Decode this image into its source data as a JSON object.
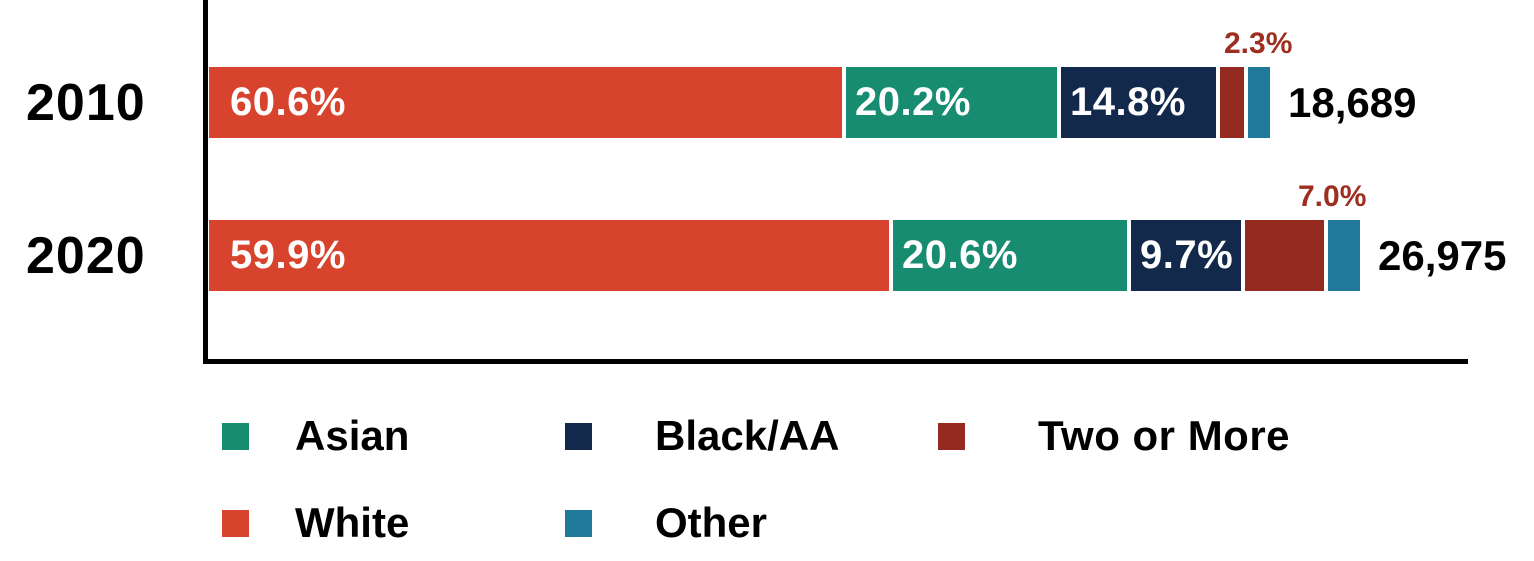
{
  "chart_data": {
    "type": "bar",
    "orientation": "horizontal",
    "stacked": true,
    "grid": false,
    "categories": [
      "2010",
      "2020"
    ],
    "series": [
      {
        "name": "White",
        "color": "#d7432c",
        "values": [
          60.6,
          59.9
        ],
        "labels": [
          "60.6%",
          "59.9%"
        ],
        "label_position": "inside"
      },
      {
        "name": "Asian",
        "color": "#178c71",
        "values": [
          20.2,
          20.6
        ],
        "labels": [
          "20.2%",
          "20.6%"
        ],
        "label_position": "inside"
      },
      {
        "name": "Black/AA",
        "color": "#12294b",
        "values": [
          14.8,
          9.7
        ],
        "labels": [
          "14.8%",
          "9.7%"
        ],
        "label_position": "inside"
      },
      {
        "name": "Two or More",
        "color": "#952b20",
        "values": [
          2.3,
          7.0
        ],
        "labels": [
          "2.3%",
          "7.0%"
        ],
        "label_position": "above",
        "label_color": "#9e2f20"
      },
      {
        "name": "Other",
        "color": "#20789b",
        "values": [
          2.1,
          2.8
        ],
        "labels": [
          "",
          ""
        ],
        "label_position": "none",
        "values_estimated": true
      }
    ],
    "totals": [
      "18,689",
      "26,975"
    ],
    "xlim": [
      0,
      100
    ],
    "legend_position": "bottom",
    "legend": [
      {
        "label": "Asian",
        "color": "#178c71"
      },
      {
        "label": "Black/AA",
        "color": "#12294b"
      },
      {
        "label": "Two or More",
        "color": "#952b20"
      },
      {
        "label": "White",
        "color": "#d7432c"
      },
      {
        "label": "Other",
        "color": "#20789b"
      }
    ]
  }
}
